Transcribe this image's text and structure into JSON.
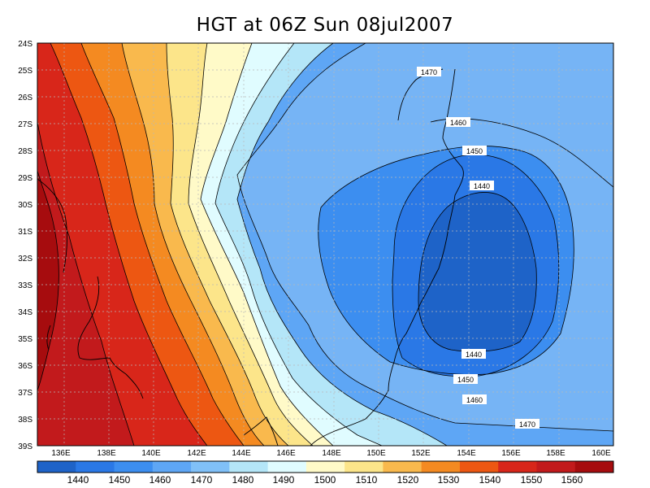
{
  "title": "HGT at 06Z Sun 08jul2007",
  "map": {
    "lat_labels": [
      "24S",
      "25S",
      "26S",
      "27S",
      "28S",
      "29S",
      "30S",
      "31S",
      "32S",
      "33S",
      "34S",
      "35S",
      "36S",
      "37S",
      "38S",
      "39S"
    ],
    "lon_labels": [
      "136E",
      "138E",
      "140E",
      "142E",
      "144E",
      "146E",
      "148E",
      "150E",
      "152E",
      "154E",
      "156E",
      "158E",
      "160E"
    ],
    "contour_labels": [
      "1470",
      "1460",
      "1450",
      "1440",
      "1440",
      "1450",
      "1460",
      "1470"
    ],
    "colorbar_values": [
      "1440",
      "1450",
      "1460",
      "1470",
      "1480",
      "1490",
      "1500",
      "1510",
      "1520",
      "1530",
      "1540",
      "1550",
      "1560"
    ],
    "palette": [
      "#1e63c8",
      "#2a78e6",
      "#3c8ef0",
      "#5ea6f5",
      "#80c0f8",
      "#b4e6f8",
      "#e0fcff",
      "#fffac8",
      "#fce58a",
      "#f9b94d",
      "#f48a21",
      "#ed5712",
      "#d8261a",
      "#c21a1c",
      "#a60c0e"
    ]
  }
}
